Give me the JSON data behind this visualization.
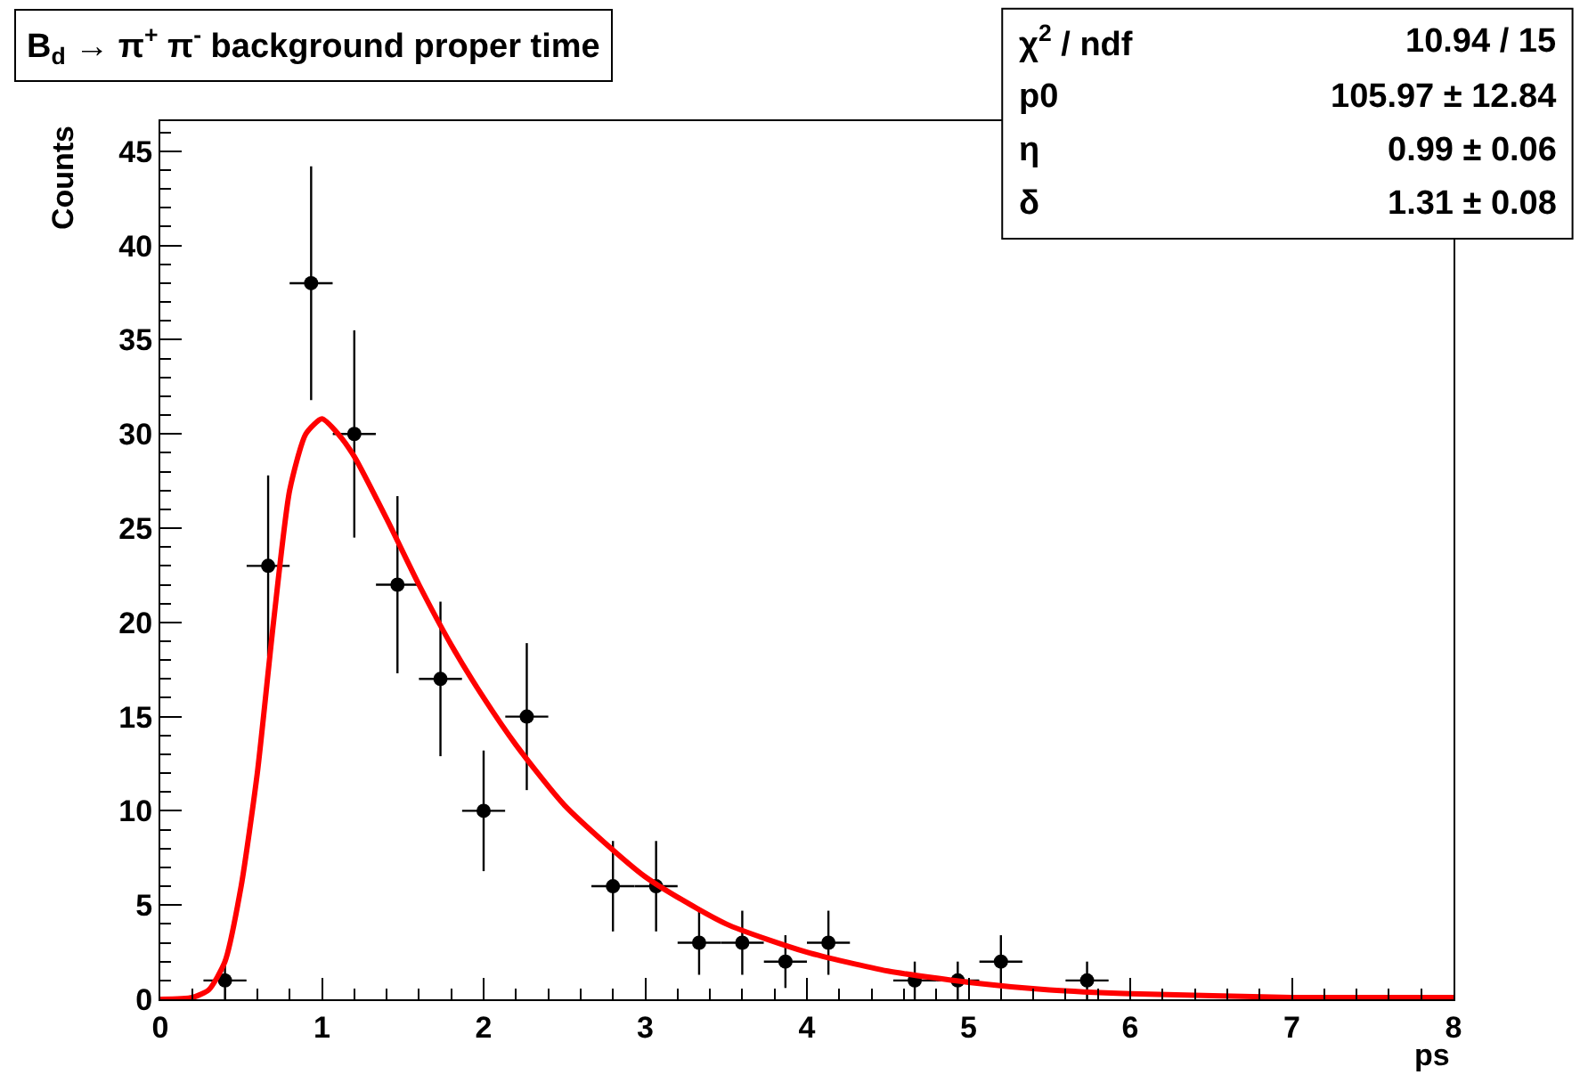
{
  "chart_data": {
    "type": "scatter",
    "title": "B$_{d}$ → π$^{+}$ π$^{-}$ background proper time",
    "xlabel": "ps",
    "ylabel": "Counts",
    "xlim": [
      0,
      8
    ],
    "xticks": [
      0,
      1,
      2,
      3,
      4,
      5,
      6,
      7,
      8
    ],
    "ylim": [
      0,
      46.6
    ],
    "yticks": [
      0,
      5,
      10,
      15,
      20,
      25,
      30,
      35,
      40,
      45
    ],
    "legend": false,
    "series": [
      {
        "color": "#000000",
        "marker": "circle",
        "x": [
          0.4,
          0.667,
          0.933,
          1.2,
          1.467,
          1.733,
          2.0,
          2.267,
          2.8,
          3.067,
          3.333,
          3.6,
          3.867,
          4.133,
          4.667,
          4.933,
          5.2,
          5.733
        ],
        "values": [
          1,
          23,
          38,
          30,
          22,
          17,
          10,
          15,
          6,
          6,
          3,
          3,
          2,
          3,
          1,
          1,
          2,
          1
        ],
        "errors": [
          1,
          4.8,
          6.2,
          5.5,
          4.7,
          4.1,
          3.2,
          3.9,
          2.4,
          2.4,
          1.7,
          1.7,
          1.4,
          1.7,
          1,
          1,
          1.4,
          1
        ],
        "xerrors": [
          0.133,
          0.133,
          0.133,
          0.133,
          0.133,
          0.133,
          0.133,
          0.133,
          0.133,
          0.133,
          0.133,
          0.133,
          0.133,
          0.133,
          0.133,
          0.133,
          0.133,
          0.133
        ]
      },
      {
        "type": "line",
        "color": "#ff0000",
        "marker": "none",
        "line_style": "solid",
        "x": [
          0,
          0.2,
          0.3,
          0.4,
          0.5,
          0.6,
          0.7,
          0.8,
          0.9,
          1.0,
          1.1,
          1.2,
          1.4,
          1.6,
          1.8,
          2.0,
          2.2,
          2.5,
          3.0,
          3.5,
          4.0,
          4.5,
          5.0,
          5.5,
          6.0,
          7.0,
          8.0
        ],
        "values": [
          0,
          0.1,
          0.5,
          2,
          6,
          12,
          20,
          27,
          30,
          30.8,
          30,
          28.8,
          25.5,
          22,
          18.8,
          16,
          13.5,
          10.3,
          6.5,
          4,
          2.5,
          1.5,
          0.9,
          0.5,
          0.3,
          0.1,
          0.1
        ]
      }
    ],
    "annotations": [
      "χ$^{2}$ / ndf",
      "10.94 / 15",
      "p0",
      "105.97 ± 12.84",
      "η",
      "0.99 ± 0.06",
      "δ",
      "1.31 ± 0.08"
    ]
  }
}
